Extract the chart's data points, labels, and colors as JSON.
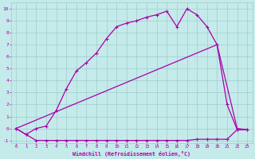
{
  "xlabel": "Windchill (Refroidissement éolien,°C)",
  "xlim": [
    -0.5,
    23.5
  ],
  "ylim": [
    -1.2,
    10.5
  ],
  "xticks": [
    0,
    1,
    2,
    3,
    4,
    5,
    6,
    7,
    8,
    9,
    10,
    11,
    12,
    13,
    14,
    15,
    16,
    17,
    18,
    19,
    20,
    21,
    22,
    23
  ],
  "yticks": [
    -1,
    0,
    1,
    2,
    3,
    4,
    5,
    6,
    7,
    8,
    9,
    10
  ],
  "bg_color": "#c5eaea",
  "grid_color": "#9ecece",
  "line_color": "#aa00aa",
  "line1_x": [
    0,
    1,
    2,
    3,
    4,
    5,
    6,
    7,
    8,
    9,
    10,
    11,
    12,
    13,
    14,
    15,
    16,
    17,
    18,
    19,
    20,
    21,
    22,
    23
  ],
  "line1_y": [
    0,
    -0.5,
    -1,
    -1,
    -1,
    -1,
    -1,
    -1,
    -1,
    -1,
    -1,
    -1,
    -1,
    -1,
    -1,
    -1,
    -1,
    -1,
    -0.9,
    -0.9,
    -0.9,
    -0.9,
    -0.1,
    -0.1
  ],
  "line2_x": [
    0,
    20,
    22,
    23
  ],
  "line2_y": [
    0,
    7,
    0,
    -0.1
  ],
  "line3_x": [
    0,
    1,
    2,
    3,
    4,
    5,
    6,
    7,
    8,
    9,
    10,
    11,
    12,
    13,
    14,
    15,
    16,
    17,
    18,
    19,
    20,
    21,
    22,
    23
  ],
  "line3_y": [
    0,
    -0.5,
    0,
    0.2,
    1.5,
    3.3,
    4.8,
    5.5,
    6.3,
    7.5,
    8.5,
    8.8,
    9.0,
    9.3,
    9.5,
    9.8,
    8.5,
    10,
    9.5,
    8.5,
    7.0,
    2.0,
    -0.1,
    -0.1
  ]
}
